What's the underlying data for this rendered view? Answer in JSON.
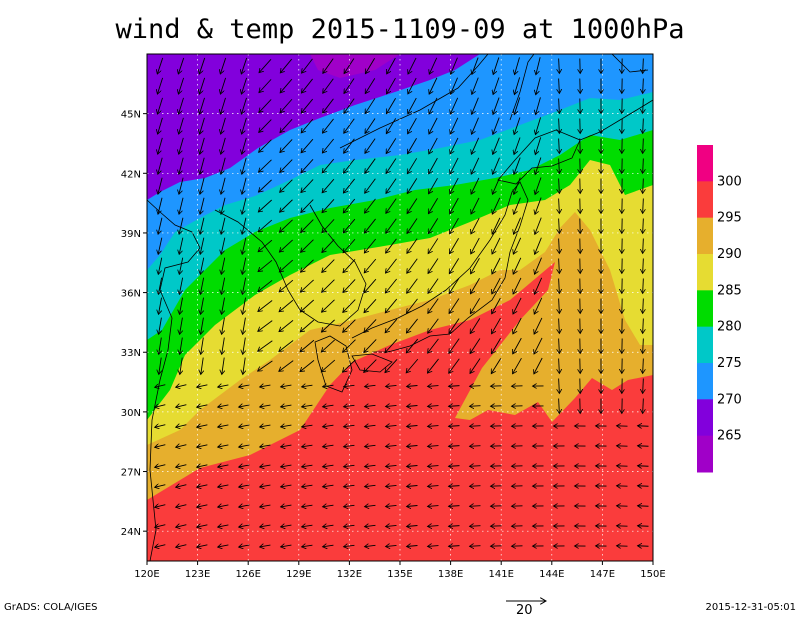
{
  "title": "wind & temp 2015-1109-09 at 1000hPa",
  "map": {
    "lon_range": [
      120,
      150
    ],
    "lat_range": [
      22.5,
      48
    ],
    "lon_ticks": [
      "120E",
      "123E",
      "126E",
      "129E",
      "132E",
      "135E",
      "138E",
      "141E",
      "144E",
      "147E",
      "150E"
    ],
    "lat_ticks": [
      "24N",
      "27N",
      "30N",
      "33N",
      "36N",
      "39N",
      "42N",
      "45N"
    ],
    "grid": true,
    "variables": [
      "wind vectors",
      "temperature (K)"
    ]
  },
  "colorbar": {
    "labels": [
      "265",
      "270",
      "275",
      "280",
      "285",
      "290",
      "295",
      "300"
    ],
    "colors": [
      "#a000c8",
      "#8200dc",
      "#1e96ff",
      "#00c8c8",
      "#00dc00",
      "#e6dc32",
      "#e6af2d",
      "#fa3c3c",
      "#f00082"
    ]
  },
  "vector_ref": {
    "label": "20"
  },
  "footer": {
    "credit": "GrADS: COLA/IGES",
    "timestamp": "2015-12-31-05:01"
  }
}
